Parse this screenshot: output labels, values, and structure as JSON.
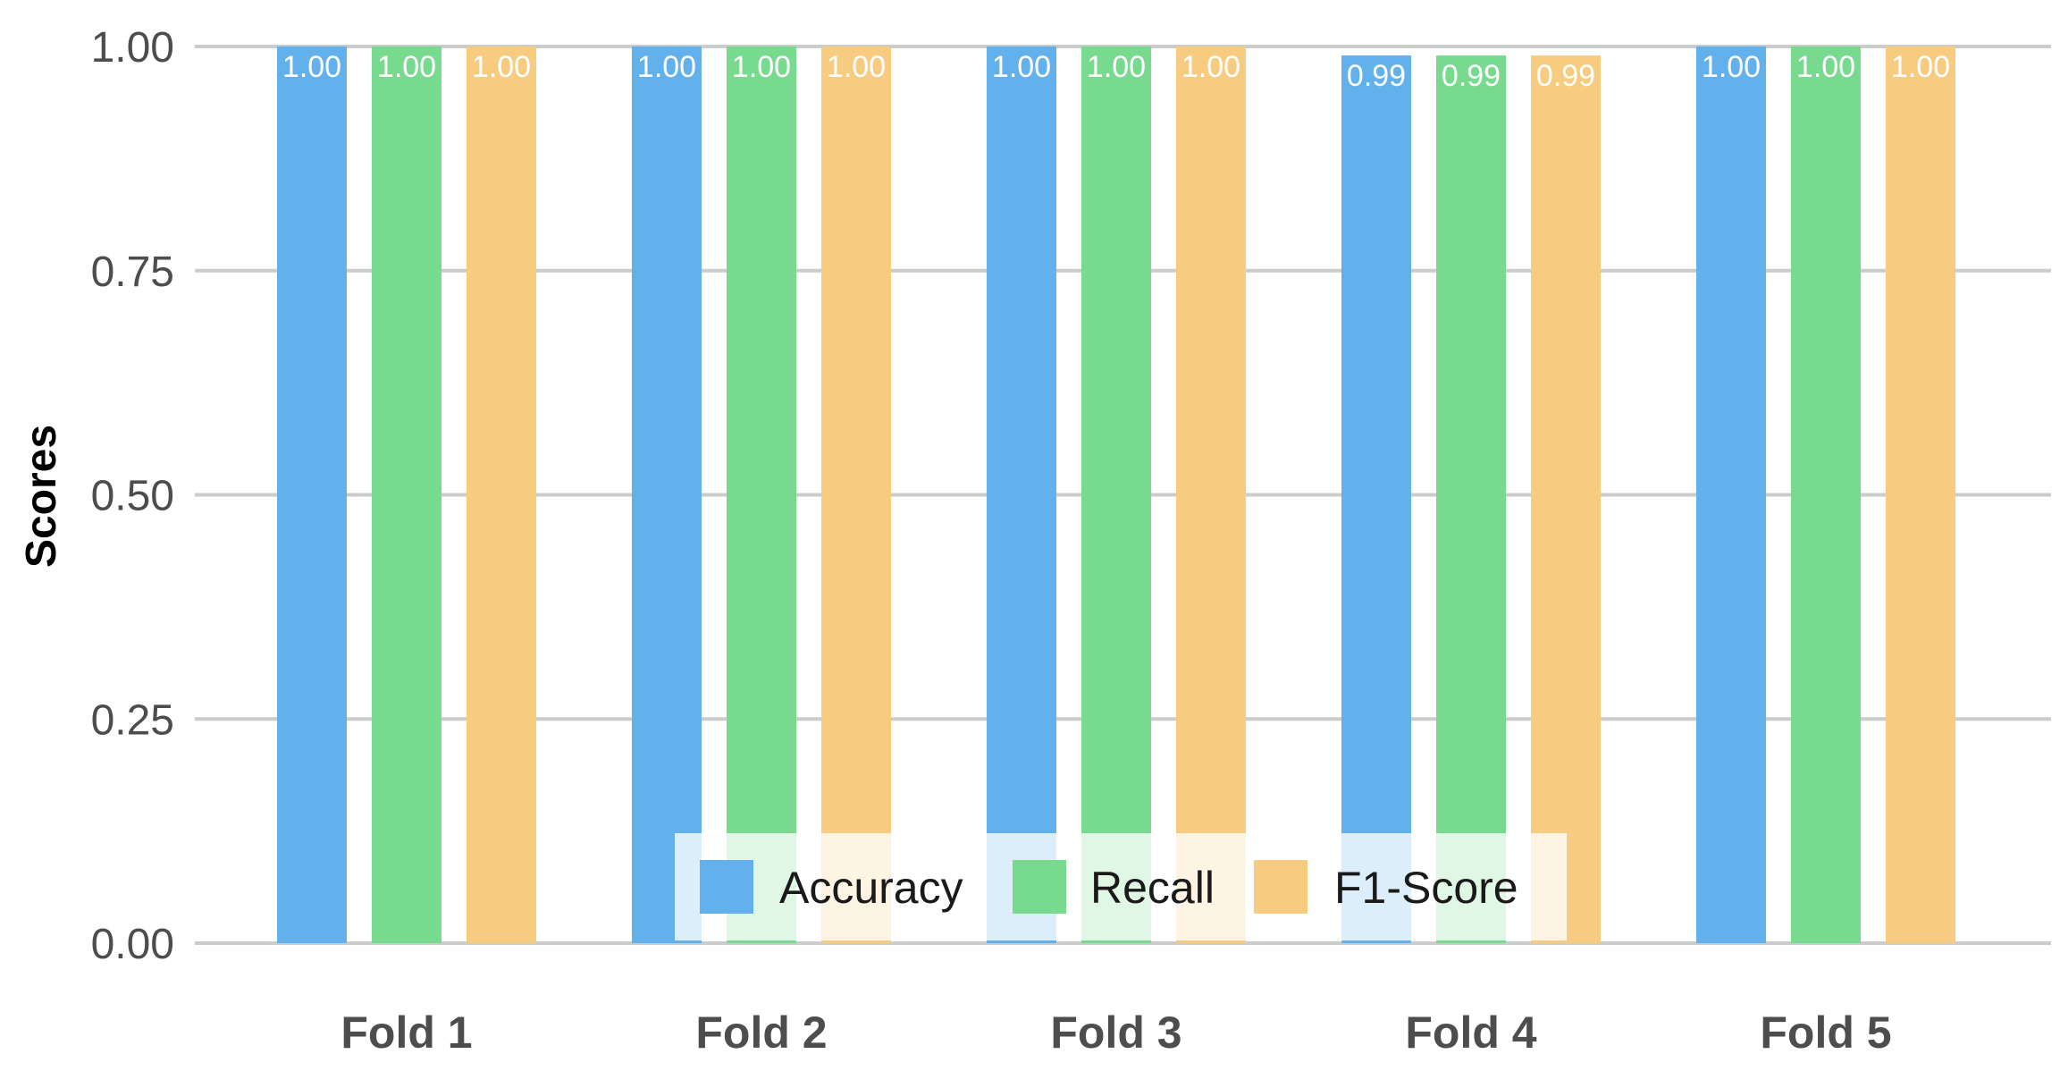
{
  "chart_data": {
    "type": "bar",
    "title": "",
    "xlabel": "",
    "ylabel": "Scores",
    "ylim": [
      0,
      1
    ],
    "yticks": [
      "0.00",
      "0.25",
      "0.50",
      "0.75",
      "1.00"
    ],
    "categories": [
      "Fold 1",
      "Fold 2",
      "Fold 3",
      "Fold 4",
      "Fold 5"
    ],
    "series": [
      {
        "name": "Accuracy",
        "color": "#63b1ec",
        "values": [
          1.0,
          1.0,
          1.0,
          0.99,
          1.0
        ],
        "labels": [
          "1.00",
          "1.00",
          "1.00",
          "0.99",
          "1.00"
        ]
      },
      {
        "name": "Recall",
        "color": "#77da8e",
        "values": [
          1.0,
          1.0,
          1.0,
          0.99,
          1.0
        ],
        "labels": [
          "1.00",
          "1.00",
          "1.00",
          "0.99",
          "1.00"
        ]
      },
      {
        "name": "F1-Score",
        "color": "#f8cc80",
        "values": [
          1.0,
          1.0,
          1.0,
          0.99,
          1.0
        ],
        "labels": [
          "1.00",
          "1.00",
          "1.00",
          "0.99",
          "1.00"
        ]
      }
    ],
    "grid": true,
    "gridline_color": "#cccccc",
    "legend": "bottom-center"
  }
}
